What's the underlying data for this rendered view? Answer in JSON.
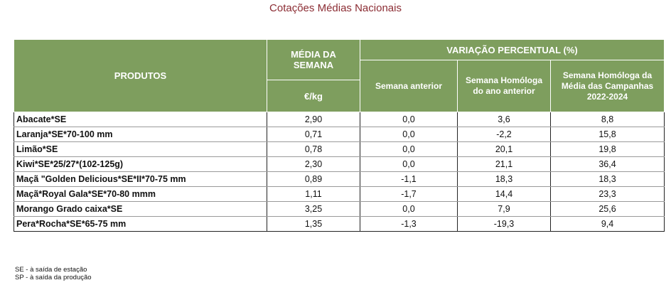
{
  "title": "Cotações Médias Nacionais",
  "table": {
    "headers": {
      "produtos": "PRODUTOS",
      "media_semana": "MÉDIA DA SEMANA",
      "unit": "€/kg",
      "variacao": "VARIAÇÃO PERCENTUAL (%)",
      "semana_anterior": "Semana anterior",
      "semana_homologa": "Semana Homóloga do ano anterior",
      "media_campanhas": "Semana Homóloga da Média das Campanhas 2022-2024"
    },
    "rows": [
      {
        "product": "Abacate*SE",
        "price": "2,90",
        "prev_week": "0,0",
        "prev_year": "3,6",
        "campaigns": "8,8"
      },
      {
        "product": "Laranja*SE*70-100 mm",
        "price": "0,71",
        "prev_week": "0,0",
        "prev_year": "-2,2",
        "campaigns": "15,8"
      },
      {
        "product": "Limão*SE",
        "price": "0,78",
        "prev_week": "0,0",
        "prev_year": "20,1",
        "campaigns": "19,8"
      },
      {
        "product": "Kiwi*SE*25/27*(102-125g)",
        "price": "2,30",
        "prev_week": "0,0",
        "prev_year": "21,1",
        "campaigns": "36,4"
      },
      {
        "product": "Maçã \"Golden Delicious*SE*II*70-75 mm",
        "price": "0,89",
        "prev_week": "-1,1",
        "prev_year": "18,3",
        "campaigns": "18,3"
      },
      {
        "product": "Maçã*Royal Gala*SE*70-80 mmm",
        "price": "1,11",
        "prev_week": "-1,7",
        "prev_year": "14,4",
        "campaigns": "23,3"
      },
      {
        "product": "Morango Grado caixa*SE",
        "price": "3,25",
        "prev_week": "0,0",
        "prev_year": "7,9",
        "campaigns": "25,6"
      },
      {
        "product": "Pera*Rocha*SE*65-75 mm",
        "price": "1,35",
        "prev_week": "-1,3",
        "prev_year": "-19,3",
        "campaigns": "9,4"
      }
    ]
  },
  "notes": [
    "SE - à saída de estação",
    "SP - à saída da produção"
  ]
}
